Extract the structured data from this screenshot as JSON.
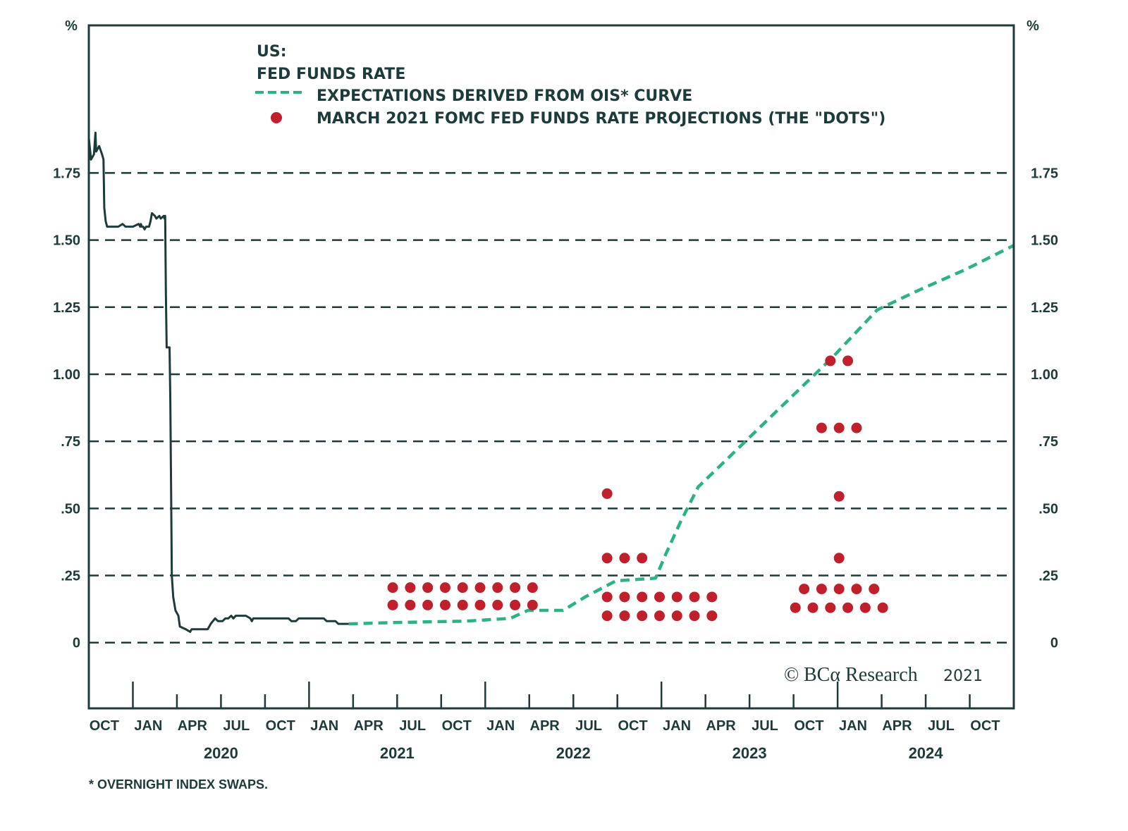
{
  "chart_data": {
    "type": "line",
    "title": "US:",
    "subtitle": "FED FUNDS RATE",
    "ylabel_left": "%",
    "ylabel_right": "%",
    "xlabel": "",
    "x_units": "months since Oct 2019",
    "xlim": [
      0,
      63
    ],
    "ylim": [
      -0.245,
      2.3
    ],
    "grid": true,
    "grid_style": "dashed horizontal",
    "y_ticks": [
      0,
      0.25,
      0.5,
      0.75,
      1.0,
      1.25,
      1.5,
      1.75
    ],
    "y_tick_labels": [
      "0",
      ".25",
      ".50",
      ".75",
      "1.00",
      "1.25",
      "1.50",
      "1.75"
    ],
    "x_ticks": [
      {
        "month": 3,
        "major": true
      },
      {
        "month": 6,
        "major": false
      },
      {
        "month": 9,
        "major": false
      },
      {
        "month": 12,
        "major": false
      },
      {
        "month": 15,
        "major": true
      },
      {
        "month": 18,
        "major": false
      },
      {
        "month": 21,
        "major": false
      },
      {
        "month": 24,
        "major": false
      },
      {
        "month": 27,
        "major": true
      },
      {
        "month": 30,
        "major": false
      },
      {
        "month": 33,
        "major": false
      },
      {
        "month": 36,
        "major": false
      },
      {
        "month": 39,
        "major": true
      },
      {
        "month": 42,
        "major": false
      },
      {
        "month": 45,
        "major": false
      },
      {
        "month": 48,
        "major": false
      },
      {
        "month": 51,
        "major": true
      },
      {
        "month": 54,
        "major": false
      },
      {
        "month": 57,
        "major": false
      },
      {
        "month": 60,
        "major": false
      }
    ],
    "x_tick_labels": [
      "OCT",
      "JAN",
      "APR",
      "JUL",
      "OCT",
      "JAN",
      "APR",
      "JUL",
      "OCT",
      "JAN",
      "APR",
      "JUL",
      "OCT",
      "JAN",
      "APR",
      "JUL",
      "OCT",
      "JAN",
      "APR",
      "JUL",
      "OCT"
    ],
    "year_labels": [
      {
        "label": "2020",
        "month": 9
      },
      {
        "label": "2021",
        "month": 21
      },
      {
        "label": "2022",
        "month": 33
      },
      {
        "label": "2023",
        "month": 45
      },
      {
        "label": "2024",
        "month": 57
      }
    ],
    "legend": {
      "placement": "top-left",
      "entries": [
        {
          "label": "EXPECTATIONS DERIVED FROM OIS* CURVE",
          "style": "dashed-line"
        },
        {
          "label": "MARCH 2021 FOMC FED FUNDS RATE PROJECTIONS (THE \"DOTS\")",
          "style": "dot"
        }
      ]
    },
    "series": [
      {
        "name": "Fed Funds Rate",
        "style": "solid",
        "color": "#1c3b3a",
        "points": [
          [
            0.0,
            1.88
          ],
          [
            0.15,
            1.8
          ],
          [
            0.35,
            1.82
          ],
          [
            0.45,
            1.9
          ],
          [
            0.5,
            1.83
          ],
          [
            0.7,
            1.85
          ],
          [
            0.9,
            1.82
          ],
          [
            1.0,
            1.8
          ],
          [
            1.05,
            1.62
          ],
          [
            1.15,
            1.57
          ],
          [
            1.25,
            1.55
          ],
          [
            2.0,
            1.55
          ],
          [
            2.3,
            1.56
          ],
          [
            2.5,
            1.55
          ],
          [
            3.0,
            1.55
          ],
          [
            3.4,
            1.56
          ],
          [
            3.5,
            1.55
          ],
          [
            3.55,
            1.56
          ],
          [
            3.6,
            1.55
          ],
          [
            3.7,
            1.55
          ],
          [
            3.8,
            1.54
          ],
          [
            3.9,
            1.55
          ],
          [
            4.0,
            1.55
          ],
          [
            4.1,
            1.55
          ],
          [
            4.2,
            1.57
          ],
          [
            4.3,
            1.6
          ],
          [
            4.5,
            1.59
          ],
          [
            4.6,
            1.58
          ],
          [
            4.8,
            1.59
          ],
          [
            4.9,
            1.58
          ],
          [
            5.1,
            1.59
          ],
          [
            5.15,
            1.58
          ],
          [
            5.2,
            1.59
          ],
          [
            5.25,
            1.3
          ],
          [
            5.3,
            1.1
          ],
          [
            5.5,
            1.1
          ],
          [
            5.55,
            0.9
          ],
          [
            5.6,
            0.6
          ],
          [
            5.65,
            0.25
          ],
          [
            5.75,
            0.17
          ],
          [
            5.9,
            0.12
          ],
          [
            6.1,
            0.1
          ],
          [
            6.2,
            0.06
          ],
          [
            6.6,
            0.05
          ],
          [
            6.9,
            0.04
          ],
          [
            7.0,
            0.05
          ],
          [
            8.1,
            0.05
          ],
          [
            8.3,
            0.07
          ],
          [
            8.6,
            0.09
          ],
          [
            8.8,
            0.08
          ],
          [
            9.1,
            0.08
          ],
          [
            9.3,
            0.09
          ],
          [
            9.5,
            0.09
          ],
          [
            9.7,
            0.1
          ],
          [
            9.85,
            0.09
          ],
          [
            10.0,
            0.1
          ],
          [
            10.7,
            0.1
          ],
          [
            11.0,
            0.09
          ],
          [
            11.1,
            0.08
          ],
          [
            11.2,
            0.09
          ],
          [
            13.6,
            0.09
          ],
          [
            13.8,
            0.08
          ],
          [
            14.1,
            0.08
          ],
          [
            14.3,
            0.09
          ],
          [
            16.0,
            0.09
          ],
          [
            16.2,
            0.08
          ],
          [
            16.4,
            0.08
          ],
          [
            16.6,
            0.08
          ],
          [
            16.8,
            0.08
          ],
          [
            17.0,
            0.07
          ],
          [
            17.7,
            0.07
          ]
        ]
      },
      {
        "name": "Expectations derived from OIS* curve",
        "style": "dashed",
        "color": "#2db383",
        "points": [
          [
            17.7,
            0.07
          ],
          [
            20.8,
            0.075
          ],
          [
            25.6,
            0.08
          ],
          [
            28.7,
            0.09
          ],
          [
            29.9,
            0.12
          ],
          [
            32.3,
            0.12
          ],
          [
            33.8,
            0.17
          ],
          [
            35.9,
            0.23
          ],
          [
            38.6,
            0.24
          ],
          [
            39.3,
            0.33
          ],
          [
            40.3,
            0.45
          ],
          [
            41.5,
            0.58
          ],
          [
            43.4,
            0.68
          ],
          [
            46.8,
            0.86
          ],
          [
            50.6,
            1.06
          ],
          [
            53.7,
            1.24
          ],
          [
            56.4,
            1.31
          ],
          [
            59.7,
            1.39
          ],
          [
            63.0,
            1.48
          ]
        ]
      },
      {
        "name": "March 2021 FOMC Fed Funds Rate Projections",
        "style": "dots",
        "color": "#c0202b",
        "groups": [
          {
            "year": "2021",
            "values": [
              {
                "rate": 0.205,
                "count": 9
              },
              {
                "rate": 0.14,
                "count": 9
              }
            ],
            "x_start_month": 20.7,
            "x_step_month": 1.19
          },
          {
            "year": "2022",
            "values": [
              {
                "rate": 0.555,
                "count": 1
              },
              {
                "rate": 0.315,
                "count": 3
              },
              {
                "rate": 0.17,
                "count": 7
              },
              {
                "rate": 0.1,
                "count": 7
              }
            ],
            "x_start_month": 35.3,
            "x_step_month": 1.19
          },
          {
            "year": "2023",
            "values": [
              {
                "rate": 1.05,
                "count": 2
              },
              {
                "rate": 0.8,
                "count": 3
              },
              {
                "rate": 0.545,
                "count": 1
              },
              {
                "rate": 0.315,
                "count": 1
              },
              {
                "rate": 0.2,
                "count": 5
              },
              {
                "rate": 0.13,
                "count": 6
              }
            ],
            "x_center_month": 51.1,
            "x_step_month": 1.19
          }
        ]
      }
    ],
    "annotations": [
      {
        "text": "© BCA Research 2021",
        "placement": "bottom-right"
      },
      {
        "text": "* OVERNIGHT INDEX SWAPS.",
        "placement": "below-chart"
      }
    ]
  },
  "text": {
    "title": "US:",
    "subtitle": "FED FUNDS RATE",
    "legend_ois": "EXPECTATIONS DERIVED FROM OIS* CURVE",
    "legend_dots": "MARCH 2021 FOMC FED FUNDS RATE PROJECTIONS (THE \"DOTS\")",
    "unit_left": "%",
    "unit_right": "%",
    "copyright_symbol": "©",
    "copyright_brand": "BCα Research",
    "copyright_year": "2021",
    "footnote": "* OVERNIGHT INDEX SWAPS."
  },
  "colors": {
    "axis": "#1c3b3a",
    "ois": "#2db383",
    "dots": "#c0202b",
    "grid": "#1c3b3a"
  }
}
